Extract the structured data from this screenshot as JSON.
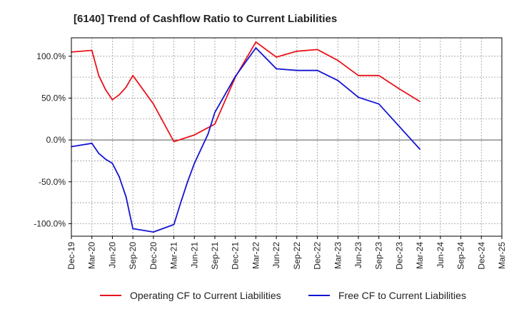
{
  "chart_data": {
    "type": "line",
    "title": "[6140]  Trend of Cashflow Ratio to Current Liabilities",
    "xlabel": "",
    "ylabel": "",
    "y_tick_labels": [
      "100.0%",
      "50.0%",
      "0.0%",
      "-50.0%",
      "-100.0%"
    ],
    "y_ticks": [
      100,
      50,
      0,
      -50,
      -100
    ],
    "ylim": [
      -115,
      122
    ],
    "grid": true,
    "legend_position": "bottom",
    "x_tick_labels": [
      "Dec-19",
      "Mar-20",
      "Jun-20",
      "Sep-20",
      "Dec-20",
      "Mar-21",
      "Jun-21",
      "Sep-21",
      "Dec-21",
      "Mar-22",
      "Jun-22",
      "Sep-22",
      "Dec-22",
      "Mar-23",
      "Jun-23",
      "Sep-23",
      "Dec-23",
      "Mar-24",
      "Jun-24",
      "Sep-24",
      "Dec-24",
      "Mar-25"
    ],
    "x_range_months": [
      0,
      63
    ],
    "series": [
      {
        "name": "Operating CF to Current Liabilities",
        "color": "#e8141b",
        "points": [
          [
            0,
            105
          ],
          [
            3,
            107
          ],
          [
            4,
            77
          ],
          [
            5,
            60
          ],
          [
            6,
            48
          ],
          [
            7,
            54
          ],
          [
            8,
            63
          ],
          [
            9,
            77
          ],
          [
            12,
            43
          ],
          [
            15,
            -2
          ],
          [
            18,
            6
          ],
          [
            21,
            19
          ],
          [
            24,
            75
          ],
          [
            27,
            117
          ],
          [
            30,
            99
          ],
          [
            33,
            106
          ],
          [
            36,
            108
          ],
          [
            39,
            95
          ],
          [
            42,
            77
          ],
          [
            45,
            77
          ],
          [
            48,
            61
          ],
          [
            51,
            46
          ]
        ]
      },
      {
        "name": "Free CF to Current Liabilities",
        "color": "#1414d2",
        "points": [
          [
            0,
            -8
          ],
          [
            3,
            -4
          ],
          [
            4,
            -16
          ],
          [
            5,
            -23
          ],
          [
            6,
            -28
          ],
          [
            7,
            -44
          ],
          [
            8,
            -68
          ],
          [
            9,
            -106
          ],
          [
            12,
            -110
          ],
          [
            15,
            -101
          ],
          [
            16,
            -75
          ],
          [
            17,
            -50
          ],
          [
            18,
            -28
          ],
          [
            20,
            7
          ],
          [
            21,
            33
          ],
          [
            24,
            76
          ],
          [
            27,
            110
          ],
          [
            30,
            85
          ],
          [
            33,
            83
          ],
          [
            36,
            83
          ],
          [
            39,
            71
          ],
          [
            42,
            51
          ],
          [
            45,
            43
          ],
          [
            48,
            16
          ],
          [
            51,
            -11
          ]
        ]
      }
    ]
  }
}
